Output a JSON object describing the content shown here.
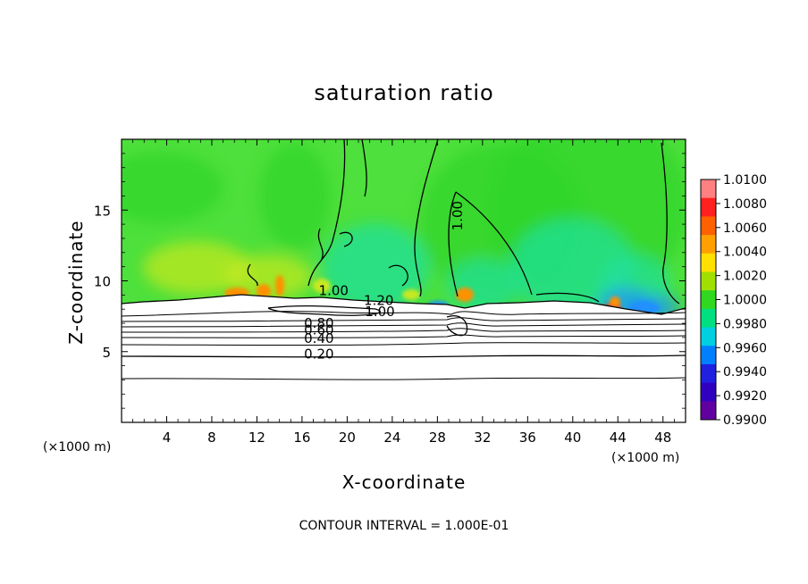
{
  "chart_data": {
    "type": "heatmap",
    "title": "saturation ratio",
    "xlabel": "X-coordinate",
    "ylabel": "Z-coordinate",
    "x_multiplier_label": "(×1000 m)",
    "x_multiplier_label_right": "(×1000 m)",
    "xlim": [
      0,
      50
    ],
    "ylim": [
      0,
      20
    ],
    "xticks": [
      4,
      8,
      12,
      16,
      20,
      24,
      28,
      32,
      36,
      40,
      44,
      48
    ],
    "yticks": [
      5,
      10,
      15
    ],
    "footer": "CONTOUR INTERVAL = 1.000E-01",
    "colorbar": {
      "ticks": [
        "1.0100",
        "1.0080",
        "1.0060",
        "1.0040",
        "1.0020",
        "1.0000",
        "0.9980",
        "0.9960",
        "0.9940",
        "0.9920",
        "0.9900"
      ],
      "colors": [
        "#ff8080",
        "#ff2020",
        "#ff6000",
        "#ffa000",
        "#ffe000",
        "#a0e000",
        "#30d820",
        "#00e080",
        "#00d0e0",
        "#0080ff",
        "#2020e0",
        "#3000c0",
        "#6000a0"
      ]
    },
    "contour_labels": [
      {
        "text": "1.00",
        "x": 18.8,
        "z": 9.0
      },
      {
        "text": "1.20",
        "x": 22.8,
        "z": 8.3
      },
      {
        "text": "1.00",
        "x": 22.9,
        "z": 7.5
      },
      {
        "text": "0.80",
        "x": 17.5,
        "z": 6.7
      },
      {
        "text": "0.60",
        "x": 17.5,
        "z": 6.2
      },
      {
        "text": "0.40",
        "x": 17.5,
        "z": 5.6
      },
      {
        "text": "0.20",
        "x": 17.5,
        "z": 4.5
      },
      {
        "text": "1.00",
        "x": 30.2,
        "z": 14.6
      }
    ],
    "field_colors": {
      "background": "#4ee03c",
      "dark_green": "#2fd42a",
      "cyan": "#20e0a0",
      "blue": "#2090ff",
      "yellow": "#c8e820",
      "orange": "#ff9000",
      "red": "#ff2020"
    }
  }
}
